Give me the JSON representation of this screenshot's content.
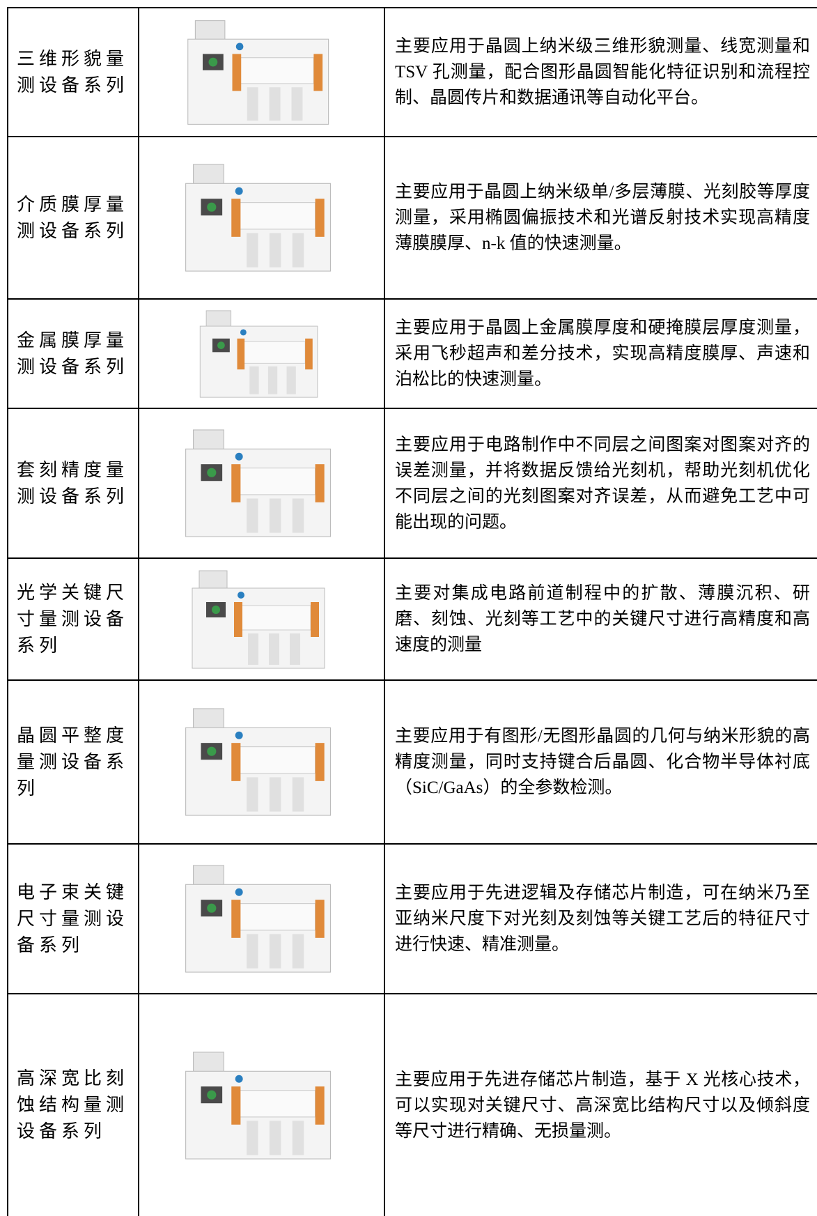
{
  "table": {
    "rows": [
      {
        "name": "三维形貌量测设备系列",
        "description": "主要应用于晶圆上纳米级三维形貌测量、线宽测量和 TSV 孔测量，配合图形晶圆智能化特征识别和流程控制、晶圆传片和数据通讯等自动化平台。"
      },
      {
        "name": "介质膜厚量测设备系列",
        "description": "主要应用于晶圆上纳米级单/多层薄膜、光刻胶等厚度测量，采用椭圆偏振技术和光谱反射技术实现高精度薄膜膜厚、n-k 值的快速测量。"
      },
      {
        "name": "金属膜厚量测设备系列",
        "description": "主要应用于晶圆上金属膜厚度和硬掩膜层厚度测量，采用飞秒超声和差分技术，实现高精度膜厚、声速和泊松比的快速测量。"
      },
      {
        "name": "套刻精度量测设备系列",
        "description": "主要应用于电路制作中不同层之间图案对图案对齐的误差测量，并将数据反馈给光刻机，帮助光刻机优化不同层之间的光刻图案对齐误差，从而避免工艺中可能出现的问题。"
      },
      {
        "name": "光学关键尺寸量测设备系列",
        "description": "主要对集成电路前道制程中的扩散、薄膜沉积、研磨、刻蚀、光刻等工艺中的关键尺寸进行高精度和高速度的测量"
      },
      {
        "name": "晶圆平整度量测设备系列",
        "description": "主要应用于有图形/无图形晶圆的几何与纳米形貌的高精度测量，同时支持键合后晶圆、化合物半导体衬底（SiC/GaAs）的全参数检测。"
      },
      {
        "name": "电子束关键尺寸量测设备系列",
        "description": "主要应用于先进逻辑及存储芯片制造，可在纳米乃至亚纳米尺度下对光刻及刻蚀等关键工艺后的特征尺寸进行快速、精准测量。"
      },
      {
        "name": "高深宽比刻蚀结构量测设备系列",
        "description": "主要应用于先进存储芯片制造，基于 X 光核心技术，可以实现对关键尺寸、高深宽比结构尺寸以及倾斜度等尺寸进行精确、无损量测。"
      }
    ]
  }
}
